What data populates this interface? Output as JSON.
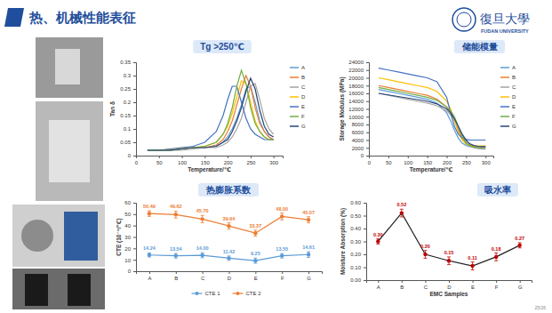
{
  "slide": {
    "title": "热、机械性能表征",
    "logo": "復旦大學",
    "logo_sub": "FUDAN UNIVERSITY",
    "page": "25/26"
  },
  "chart_data": [
    {
      "type": "line",
      "title": "Tg >250℃",
      "xlabel": "Temperature/℃",
      "ylabel": "Tan δ",
      "x": [
        25,
        50,
        75,
        100,
        125,
        150,
        175,
        190,
        200,
        210,
        220,
        230,
        240,
        250,
        260,
        270,
        280,
        290,
        300
      ],
      "xlim": [
        0,
        320
      ],
      "xticks": [
        0,
        50,
        100,
        150,
        200,
        250,
        300
      ],
      "ylim": [
        0,
        0.35
      ],
      "yticks": [
        0,
        0.05,
        0.1,
        0.15,
        0.2,
        0.25,
        0.3,
        0.35
      ],
      "grid": false,
      "legend": "right",
      "series": [
        {
          "name": "A",
          "color": "#5b9bd5",
          "marker": "none",
          "line_style": "solid",
          "values": [
            0.02,
            0.02,
            0.02,
            0.025,
            0.03,
            0.03,
            0.035,
            0.05,
            0.07,
            0.1,
            0.14,
            0.19,
            0.25,
            0.26,
            0.2,
            0.13,
            0.09,
            0.07,
            0.06
          ]
        },
        {
          "name": "B",
          "color": "#ed7d31",
          "marker": "none",
          "line_style": "solid",
          "values": [
            0.02,
            0.02,
            0.02,
            0.025,
            0.03,
            0.03,
            0.04,
            0.06,
            0.09,
            0.13,
            0.19,
            0.25,
            0.3,
            0.26,
            0.18,
            0.12,
            0.09,
            0.07,
            0.06
          ]
        },
        {
          "name": "C",
          "color": "#a5a5a5",
          "marker": "none",
          "line_style": "solid",
          "values": [
            0.02,
            0.02,
            0.02,
            0.02,
            0.025,
            0.03,
            0.03,
            0.04,
            0.05,
            0.07,
            0.1,
            0.14,
            0.2,
            0.26,
            0.27,
            0.21,
            0.14,
            0.1,
            0.08
          ]
        },
        {
          "name": "D",
          "color": "#ffc000",
          "marker": "none",
          "line_style": "solid",
          "values": [
            0.02,
            0.02,
            0.025,
            0.03,
            0.03,
            0.035,
            0.05,
            0.08,
            0.11,
            0.16,
            0.22,
            0.28,
            0.27,
            0.2,
            0.13,
            0.09,
            0.07,
            0.06,
            0.06
          ]
        },
        {
          "name": "E",
          "color": "#4472c4",
          "marker": "none",
          "line_style": "solid",
          "values": [
            0.02,
            0.02,
            0.025,
            0.03,
            0.035,
            0.05,
            0.09,
            0.15,
            0.21,
            0.26,
            0.26,
            0.2,
            0.14,
            0.1,
            0.08,
            0.07,
            0.06,
            0.06,
            0.06
          ]
        },
        {
          "name": "F",
          "color": "#70ad47",
          "marker": "none",
          "line_style": "solid",
          "values": [
            0.02,
            0.02,
            0.02,
            0.025,
            0.03,
            0.035,
            0.05,
            0.08,
            0.12,
            0.18,
            0.26,
            0.32,
            0.27,
            0.18,
            0.12,
            0.09,
            0.07,
            0.06,
            0.06
          ]
        },
        {
          "name": "G",
          "color": "#264478",
          "marker": "none",
          "line_style": "solid",
          "values": [
            0.02,
            0.02,
            0.02,
            0.025,
            0.03,
            0.03,
            0.035,
            0.05,
            0.06,
            0.09,
            0.13,
            0.18,
            0.24,
            0.29,
            0.25,
            0.17,
            0.11,
            0.08,
            0.07
          ]
        }
      ]
    },
    {
      "type": "line",
      "title": "储能模量",
      "xlabel": "Temperature/℃",
      "ylabel": "Storage Modulus (MPa)",
      "x": [
        25,
        50,
        75,
        100,
        125,
        150,
        175,
        200,
        210,
        220,
        230,
        240,
        250,
        260,
        270,
        280,
        290,
        300
      ],
      "xlim": [
        0,
        320
      ],
      "xticks": [
        0,
        50,
        100,
        150,
        200,
        250,
        300
      ],
      "ylim": [
        0,
        24000
      ],
      "yticks": [
        0,
        2000,
        4000,
        6000,
        8000,
        10000,
        12000,
        14000,
        16000,
        18000,
        20000,
        22000,
        24000
      ],
      "grid": false,
      "legend": "right",
      "series": [
        {
          "name": "A",
          "color": "#5b9bd5",
          "marker": "none",
          "line_style": "solid",
          "values": [
            17000,
            16500,
            16000,
            15500,
            15000,
            14500,
            13500,
            11000,
            9000,
            6500,
            4500,
            3200,
            2600,
            2300,
            2200,
            2100,
            2100,
            2100
          ]
        },
        {
          "name": "B",
          "color": "#ed7d31",
          "marker": "none",
          "line_style": "solid",
          "values": [
            18000,
            17500,
            17000,
            16500,
            16000,
            15500,
            14500,
            12500,
            11000,
            9000,
            6500,
            4500,
            3200,
            2600,
            2400,
            2300,
            2300,
            2300
          ]
        },
        {
          "name": "C",
          "color": "#a5a5a5",
          "marker": "none",
          "line_style": "solid",
          "values": [
            16000,
            15500,
            15000,
            14500,
            14000,
            13500,
            12800,
            11500,
            10500,
            9000,
            7000,
            5000,
            3500,
            2500,
            2000,
            1800,
            1700,
            1700
          ]
        },
        {
          "name": "D",
          "color": "#ffc000",
          "marker": "none",
          "line_style": "solid",
          "values": [
            20000,
            19500,
            19000,
            18500,
            18000,
            17500,
            16500,
            14000,
            12000,
            9000,
            6000,
            4000,
            3000,
            2600,
            2500,
            2500,
            2500,
            2500
          ]
        },
        {
          "name": "E",
          "color": "#4472c4",
          "marker": "none",
          "line_style": "solid",
          "values": [
            22500,
            22000,
            21500,
            21000,
            20500,
            20000,
            19000,
            15000,
            11000,
            7500,
            5500,
            4500,
            4200,
            4000,
            4000,
            4000,
            4000,
            4000
          ]
        },
        {
          "name": "F",
          "color": "#70ad47",
          "marker": "none",
          "line_style": "solid",
          "values": [
            17500,
            17000,
            16500,
            16000,
            15500,
            15000,
            14200,
            12500,
            11500,
            10000,
            7500,
            5000,
            3200,
            2500,
            2200,
            2100,
            2000,
            2000
          ]
        },
        {
          "name": "G",
          "color": "#264478",
          "marker": "none",
          "line_style": "solid",
          "values": [
            16000,
            15600,
            15200,
            14800,
            14400,
            14000,
            13300,
            12000,
            11000,
            9500,
            7500,
            5500,
            4000,
            3000,
            2600,
            2400,
            2300,
            2300
          ]
        }
      ]
    },
    {
      "type": "line",
      "title": "热膨胀系数",
      "ylabel": "CTE (10⁻⁶/℃)",
      "categories": [
        "A",
        "B",
        "C",
        "D",
        "E",
        "F",
        "G"
      ],
      "ylim": [
        0,
        60
      ],
      "yticks": [
        0,
        10,
        20,
        30,
        40,
        50,
        60
      ],
      "grid": false,
      "legend": "bottom",
      "data_labels": true,
      "series": [
        {
          "name": "CTE 1",
          "color": "#5b9bd5",
          "marker": "circle",
          "line_style": "solid",
          "values": [
            14.24,
            13.54,
            14.0,
            11.42,
            9.25,
            13.55,
            14.61
          ],
          "value_labels": [
            "14.24",
            "13.54",
            "14.00",
            "11.42",
            "9.25",
            "13.55",
            "14.61"
          ],
          "errors": [
            1.8,
            2.0,
            2.2,
            1.9,
            2.3,
            2.0,
            2.5
          ]
        },
        {
          "name": "CTE 2",
          "color": "#ed7d31",
          "marker": "circle",
          "line_style": "solid",
          "values": [
            50.49,
            49.62,
            45.7,
            39.64,
            33.37,
            48.0,
            45.07
          ],
          "value_labels": [
            "50.49",
            "49.62",
            "45.70",
            "39.64",
            "33.37",
            "48.00",
            "45.07"
          ],
          "errors": [
            2.5,
            3.0,
            3.2,
            2.8,
            2.6,
            3.0,
            2.7
          ]
        }
      ]
    },
    {
      "type": "line",
      "title": "吸水率",
      "xlabel": "EMC Samples",
      "ylabel": "Moisture Absorption (%)",
      "categories": [
        "A",
        "B",
        "C",
        "D",
        "E",
        "F",
        "G"
      ],
      "ylim": [
        0,
        0.6
      ],
      "yticks": [
        {
          "value": 0,
          "label": "0.00"
        },
        {
          "value": 0.1,
          "label": "0.10"
        },
        {
          "value": 0.2,
          "label": "0.20"
        },
        {
          "value": 0.3,
          "label": "0.30"
        },
        {
          "value": 0.4,
          "label": "0.40"
        },
        {
          "value": 0.5,
          "label": "0.50"
        },
        {
          "value": 0.6,
          "label": "0.60"
        }
      ],
      "grid": false,
      "data_labels": true,
      "series": [
        {
          "color": "#c00000",
          "marker": "circle",
          "line_style": "solid",
          "values": [
            0.3,
            0.52,
            0.2,
            0.15,
            0.11,
            0.18,
            0.27
          ],
          "value_labels": [
            "0.30",
            "0.52",
            "0.20",
            "0.15",
            "0.11",
            "0.18",
            "0.27"
          ],
          "errors": [
            0.02,
            0.03,
            0.03,
            0.03,
            0.03,
            0.03,
            0.02
          ]
        }
      ]
    }
  ]
}
